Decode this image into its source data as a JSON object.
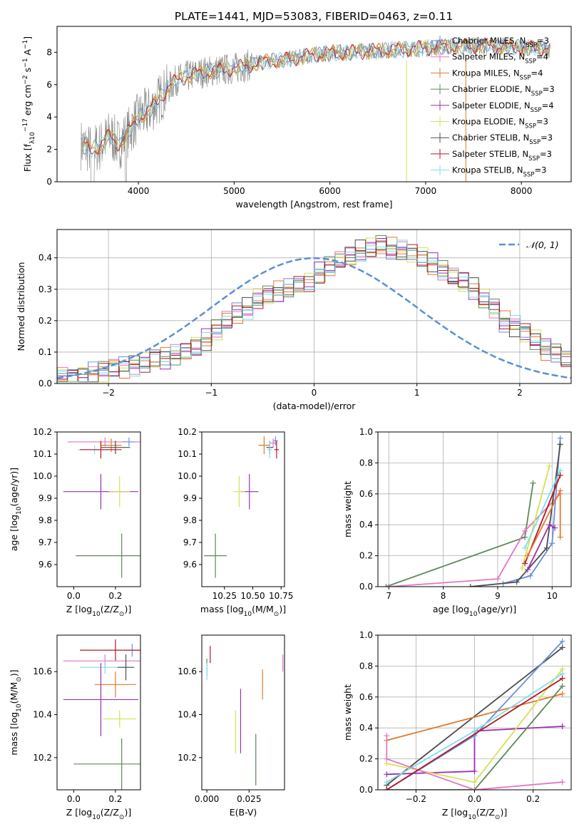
{
  "title": "PLATE=1441, MJD=53083, FIBERID=0463, z=0.11",
  "colors": {
    "chabrier_miles": "#6a8fd8",
    "salpeter_miles": "#e377c2",
    "kroupa_miles": "#e07b2a",
    "chabrier_elodie": "#5a8a5a",
    "salpeter_elodie": "#9b2fae",
    "kroupa_elodie": "#d4e157",
    "chabrier_stelib": "#4d4d4d",
    "salpeter_stelib": "#b2182b",
    "kroupa_stelib": "#80deea",
    "spectrum_data": "#808080",
    "grid": "#b0b0b0"
  },
  "chart_data": [
    {
      "type": "line",
      "panel": "spectrum",
      "xlabel": "wavelength [Angstrom, rest frame]",
      "ylabel_parts": [
        "Flux [f",
        "λ",
        "10",
        "−17",
        " erg cm",
        "−2",
        " s",
        "−1",
        " A",
        "−1",
        "]"
      ],
      "xlim": [
        3150,
        8520
      ],
      "ylim": [
        0,
        9.6
      ],
      "xticks": [
        4000,
        5000,
        6000,
        7000,
        8000
      ],
      "yticks": [
        0,
        2,
        4,
        6,
        8
      ],
      "grid": false,
      "legend_position": "right",
      "legend": [
        {
          "key": "chabrier_miles",
          "text": "Chabrier MILES, N",
          "sub": "SSP",
          "tail": "=3"
        },
        {
          "key": "salpeter_miles",
          "text": "Salpeter MILES, N",
          "sub": "SSP",
          "tail": "=4"
        },
        {
          "key": "kroupa_miles",
          "text": "Kroupa MILES, N",
          "sub": "SSP",
          "tail": "=4"
        },
        {
          "key": "chabrier_elodie",
          "text": "Chabrier ELODIE, N",
          "sub": "SSP",
          "tail": "=3"
        },
        {
          "key": "salpeter_elodie",
          "text": "Salpeter ELODIE, N",
          "sub": "SSP",
          "tail": "=4"
        },
        {
          "key": "kroupa_elodie",
          "text": "Kroupa ELODIE, N",
          "sub": "SSP",
          "tail": "=3"
        },
        {
          "key": "chabrier_stelib",
          "text": "Chabrier STELIB, N",
          "sub": "SSP",
          "tail": "=3"
        },
        {
          "key": "salpeter_stelib",
          "text": "Salpeter STELIB, N",
          "sub": "SSP",
          "tail": "=3"
        },
        {
          "key": "kroupa_stelib",
          "text": "Kroupa STELIB, N",
          "sub": "SSP",
          "tail": "=3"
        }
      ],
      "model_trend": {
        "x": [
          3400,
          3500,
          3600,
          3700,
          3800,
          3900,
          4000,
          4100,
          4200,
          4300,
          4400,
          4500,
          4700,
          5000,
          5300,
          5600,
          5900,
          6200,
          6500,
          6800,
          7100,
          7400,
          7700,
          8000,
          8300
        ],
        "y": [
          2.3,
          2.0,
          2.2,
          2.9,
          2.3,
          3.1,
          4.0,
          4.3,
          5.0,
          5.7,
          6.3,
          6.5,
          6.8,
          7.0,
          7.4,
          7.6,
          7.9,
          8.0,
          8.1,
          8.2,
          8.3,
          8.4,
          8.4,
          8.3,
          8.2
        ]
      }
    },
    {
      "type": "line",
      "panel": "histogram",
      "xlabel": "(data-model)/error",
      "ylabel": "Normed distribution",
      "xlim": [
        -2.5,
        2.5
      ],
      "ylim": [
        0,
        0.49
      ],
      "xticks": [
        -2,
        -1,
        0,
        1,
        2
      ],
      "yticks": [
        0.0,
        0.1,
        0.2,
        0.3,
        0.4
      ],
      "grid": true,
      "legend_position": "top-right",
      "reference_curve": {
        "label": "𝒩(0, 1)",
        "color": "#5b8fd6",
        "mean": 0,
        "sigma": 1
      },
      "bin_width": 0.1,
      "bin_start": -2.5,
      "envelope": [
        0.02,
        0.02,
        0.03,
        0.04,
        0.04,
        0.05,
        0.05,
        0.06,
        0.07,
        0.08,
        0.08,
        0.09,
        0.1,
        0.12,
        0.14,
        0.17,
        0.2,
        0.22,
        0.24,
        0.27,
        0.28,
        0.29,
        0.3,
        0.31,
        0.32,
        0.35,
        0.37,
        0.39,
        0.4,
        0.42,
        0.43,
        0.44,
        0.43,
        0.42,
        0.41,
        0.4,
        0.38,
        0.36,
        0.34,
        0.32,
        0.3,
        0.27,
        0.24,
        0.2,
        0.18,
        0.16,
        0.14,
        0.11,
        0.1,
        0.08,
        0.07,
        0.06,
        0.05,
        0.05,
        0.04,
        0.04,
        0.03,
        0.03,
        0.03,
        0.02
      ]
    },
    {
      "type": "scatter",
      "panel": "Z-age",
      "xlabel_parts": [
        "Z [log",
        "10",
        "(Z/Z",
        "⊙",
        ")]"
      ],
      "ylabel_parts": [
        "age  [log",
        "10",
        "(age/yr)]"
      ],
      "xlim": [
        -0.08,
        0.32
      ],
      "ylim": [
        9.5,
        10.2
      ],
      "xticks": [
        0.0,
        0.2
      ],
      "yticks": [
        9.6,
        9.7,
        9.8,
        9.9,
        10.0,
        10.1,
        10.2
      ],
      "points": [
        {
          "key": "salpeter_miles",
          "x": 0.15,
          "y": 10.155,
          "xerr": 0.18,
          "yerr": 0.02
        },
        {
          "key": "chabrier_miles",
          "x": 0.265,
          "y": 10.155,
          "xerr": 0.03,
          "yerr": 0.02
        },
        {
          "key": "kroupa_miles",
          "x": 0.18,
          "y": 10.14,
          "xerr": 0.05,
          "yerr": 0.03
        },
        {
          "key": "kroupa_stelib",
          "x": 0.1,
          "y": 10.12,
          "xerr": 0.08,
          "yerr": 0.02
        },
        {
          "key": "chabrier_stelib",
          "x": 0.2,
          "y": 10.13,
          "xerr": 0.07,
          "yerr": 0.03
        },
        {
          "key": "salpeter_stelib",
          "x": 0.13,
          "y": 10.12,
          "xerr": 0.1,
          "yerr": 0.04
        },
        {
          "key": "salpeter_elodie",
          "x": 0.13,
          "y": 9.93,
          "xerr": 0.18,
          "yerr": 0.08
        },
        {
          "key": "kroupa_elodie",
          "x": 0.22,
          "y": 9.93,
          "xerr": 0.05,
          "yerr": 0.07
        },
        {
          "key": "chabrier_elodie",
          "x": 0.23,
          "y": 9.64,
          "xerr": 0.22,
          "yerr": 0.1
        }
      ]
    },
    {
      "type": "scatter",
      "panel": "mass-age",
      "xlabel_parts": [
        "mass [log",
        "10",
        "(M/M",
        "⊙",
        ")]"
      ],
      "xlim": [
        10.05,
        10.78
      ],
      "ylim": [
        9.5,
        10.2
      ],
      "xticks": [
        10.25,
        10.5,
        10.75
      ],
      "yticks": [
        9.6,
        9.7,
        9.8,
        9.9,
        10.0,
        10.1,
        10.2
      ],
      "points": [
        {
          "key": "chabrier_miles",
          "x": 10.7,
          "y": 10.16,
          "xerr": 0.02,
          "yerr": 0.02
        },
        {
          "key": "salpeter_miles",
          "x": 10.68,
          "y": 10.15,
          "xerr": 0.03,
          "yerr": 0.02
        },
        {
          "key": "kroupa_miles",
          "x": 10.6,
          "y": 10.14,
          "xerr": 0.05,
          "yerr": 0.04
        },
        {
          "key": "chabrier_stelib",
          "x": 10.65,
          "y": 10.13,
          "xerr": 0.03,
          "yerr": 0.03
        },
        {
          "key": "salpeter_stelib",
          "x": 10.71,
          "y": 10.12,
          "xerr": 0.02,
          "yerr": 0.04
        },
        {
          "key": "kroupa_stelib",
          "x": 10.65,
          "y": 10.12,
          "xerr": 0.02,
          "yerr": 0.04
        },
        {
          "key": "salpeter_elodie",
          "x": 10.47,
          "y": 9.93,
          "xerr": 0.08,
          "yerr": 0.08
        },
        {
          "key": "kroupa_elodie",
          "x": 10.38,
          "y": 9.93,
          "xerr": 0.05,
          "yerr": 0.07
        },
        {
          "key": "chabrier_elodie",
          "x": 10.17,
          "y": 9.64,
          "xerr": 0.1,
          "yerr": 0.1
        }
      ]
    },
    {
      "type": "line",
      "panel": "age-weight",
      "xlabel_parts": [
        "age  [log",
        "10",
        "(age/yr)]"
      ],
      "ylabel": "mass weight",
      "xlim": [
        6.8,
        10.35
      ],
      "ylim": [
        0,
        1
      ],
      "xticks": [
        7,
        8,
        9,
        10
      ],
      "yticks": [
        0.0,
        0.2,
        0.4,
        0.6,
        0.8,
        1.0
      ],
      "grid": true,
      "series": [
        {
          "key": "chabrier_elodie",
          "x": [
            6.95,
            9.5,
            9.65
          ],
          "y": [
            0.0,
            0.32,
            0.67
          ]
        },
        {
          "key": "salpeter_miles",
          "x": [
            7.0,
            9.0,
            9.5,
            10.15
          ],
          "y": [
            0.0,
            0.05,
            0.36,
            0.6
          ]
        },
        {
          "key": "chabrier_miles",
          "x": [
            9.1,
            9.6,
            10.0,
            10.15
          ],
          "y": [
            0.02,
            0.07,
            0.28,
            0.96
          ]
        },
        {
          "key": "chabrier_stelib",
          "x": [
            8.5,
            9.35,
            9.9,
            10.15
          ],
          "y": [
            0.0,
            0.03,
            0.25,
            0.92
          ]
        },
        {
          "key": "kroupa_elodie",
          "x": [
            9.45,
            9.95
          ],
          "y": [
            0.12,
            0.78
          ]
        },
        {
          "key": "salpeter_elodie",
          "x": [
            9.55,
            9.95,
            10.05
          ],
          "y": [
            0.11,
            0.4,
            0.38
          ]
        },
        {
          "key": "kroupa_stelib",
          "x": [
            9.5,
            10.15
          ],
          "y": [
            0.25,
            0.75
          ]
        },
        {
          "key": "salpeter_stelib",
          "x": [
            9.5,
            10.15
          ],
          "y": [
            0.15,
            0.72
          ]
        },
        {
          "key": "kroupa_miles",
          "x": [
            9.55,
            10.15,
            10.15
          ],
          "y": [
            0.2,
            0.62,
            0.32
          ]
        }
      ]
    },
    {
      "type": "scatter",
      "panel": "Z-mass",
      "xlabel_parts": [
        "Z [log",
        "10",
        "(Z/Z",
        "⊙",
        ")]"
      ],
      "ylabel_parts": [
        "mass [log",
        "10",
        "(M/M",
        "⊙",
        ")]"
      ],
      "xlim": [
        -0.08,
        0.32
      ],
      "ylim": [
        10.05,
        10.77
      ],
      "xticks": [
        0.0,
        0.2
      ],
      "yticks": [
        10.2,
        10.4,
        10.6
      ],
      "points": [
        {
          "key": "chabrier_miles",
          "x": 0.28,
          "y": 10.7,
          "xerr": 0.03,
          "yerr": 0.03
        },
        {
          "key": "salpeter_stelib",
          "x": 0.2,
          "y": 10.7,
          "xerr": 0.17,
          "yerr": 0.05
        },
        {
          "key": "salpeter_miles",
          "x": 0.15,
          "y": 10.65,
          "xerr": 0.2,
          "yerr": 0.03
        },
        {
          "key": "kroupa_stelib",
          "x": 0.15,
          "y": 10.62,
          "xerr": 0.12,
          "yerr": 0.03
        },
        {
          "key": "chabrier_stelib",
          "x": 0.25,
          "y": 10.62,
          "xerr": 0.04,
          "yerr": 0.06
        },
        {
          "key": "kroupa_miles",
          "x": 0.2,
          "y": 10.54,
          "xerr": 0.1,
          "yerr": 0.06
        },
        {
          "key": "salpeter_elodie",
          "x": 0.13,
          "y": 10.47,
          "xerr": 0.18,
          "yerr": 0.17
        },
        {
          "key": "kroupa_elodie",
          "x": 0.22,
          "y": 10.38,
          "xerr": 0.08,
          "yerr": 0.04
        },
        {
          "key": "chabrier_elodie",
          "x": 0.23,
          "y": 10.17,
          "xerr": 0.23,
          "yerr": 0.12
        }
      ]
    },
    {
      "type": "scatter",
      "panel": "EBV-mass",
      "xlabel": "E(B-V)",
      "xlim": [
        -0.003,
        0.046
      ],
      "ylim": [
        10.05,
        10.77
      ],
      "xticks": [
        0.0,
        0.025
      ],
      "yticks": [
        10.2,
        10.4,
        10.6
      ],
      "points": [
        {
          "key": "chabrier_elodie",
          "x": 0.0,
          "y": 10.62,
          "yerr": 0.04
        },
        {
          "key": "salpeter_stelib",
          "x": 0.002,
          "y": 10.68,
          "yerr": 0.04
        },
        {
          "key": "kroupa_stelib",
          "x": 0.0,
          "y": 10.6,
          "yerr": 0.04
        },
        {
          "key": "kroupa_elodie",
          "x": 0.017,
          "y": 10.32,
          "yerr": 0.1
        },
        {
          "key": "salpeter_elodie",
          "x": 0.02,
          "y": 10.37,
          "yerr": 0.15
        },
        {
          "key": "chabrier_elodie",
          "x": 0.029,
          "y": 10.19,
          "yerr": 0.12
        },
        {
          "key": "kroupa_miles",
          "x": 0.033,
          "y": 10.54,
          "yerr": 0.07
        },
        {
          "key": "salpeter_miles",
          "x": 0.045,
          "y": 10.64,
          "yerr": 0.04
        }
      ]
    },
    {
      "type": "line",
      "panel": "Z-weight",
      "xlabel_parts": [
        "Z [log",
        "10",
        "(Z/Z",
        "⊙",
        ")]"
      ],
      "ylabel": "mass weight",
      "xlim": [
        -0.33,
        0.33
      ],
      "ylim": [
        0,
        1
      ],
      "xticks": [
        -0.2,
        0.0,
        0.2
      ],
      "yticks": [
        0.0,
        0.2,
        0.4,
        0.6,
        0.8,
        1.0
      ],
      "grid": true,
      "series": [
        {
          "key": "chabrier_stelib",
          "x": [
            -0.3,
            0.3
          ],
          "y": [
            0.03,
            0.92
          ]
        },
        {
          "key": "kroupa_miles",
          "x": [
            -0.3,
            0.3
          ],
          "y": [
            0.32,
            0.62
          ]
        },
        {
          "key": "salpeter_elodie",
          "x": [
            -0.3,
            0.0,
            0.0,
            0.3
          ],
          "y": [
            0.1,
            0.12,
            0.38,
            0.41
          ]
        },
        {
          "key": "kroupa_elodie",
          "x": [
            -0.3,
            0.0,
            0.3
          ],
          "y": [
            0.17,
            0.05,
            0.78
          ]
        },
        {
          "key": "chabrier_miles",
          "x": [
            -0.3,
            0.0,
            0.3
          ],
          "y": [
            0.0,
            0.35,
            0.96
          ]
        },
        {
          "key": "kroupa_stelib",
          "x": [
            -0.3,
            0.0,
            0.3
          ],
          "y": [
            0.05,
            0.38,
            0.75
          ]
        },
        {
          "key": "chabrier_elodie",
          "x": [
            -0.3,
            0.0,
            0.3
          ],
          "y": [
            0.0,
            0.0,
            0.67
          ]
        },
        {
          "key": "salpeter_miles",
          "x": [
            -0.3,
            -0.3,
            0.0,
            0.3
          ],
          "y": [
            0.35,
            0.2,
            0.0,
            0.05
          ]
        },
        {
          "key": "salpeter_stelib",
          "x": [
            -0.3,
            0.3
          ],
          "y": [
            0.0,
            0.72
          ]
        }
      ]
    }
  ]
}
